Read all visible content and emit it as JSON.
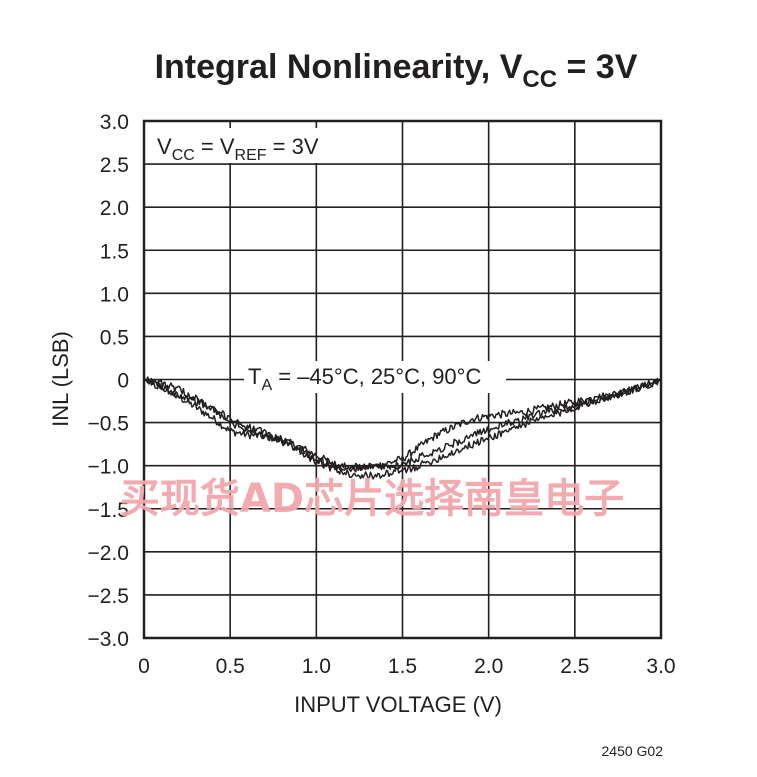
{
  "chart_data": {
    "type": "line",
    "title": {
      "main": "Integral Nonlinearity, V",
      "sub": "CC",
      "tail": " = 3V"
    },
    "xlabel": "INPUT VOLTAGE (V)",
    "ylabel": "INL (LSB)",
    "xlim": [
      0,
      3.0
    ],
    "ylim": [
      -3.0,
      3.0
    ],
    "x_ticks": [
      "0",
      "0.5",
      "1.0",
      "1.5",
      "2.0",
      "2.5",
      "3.0"
    ],
    "y_ticks": [
      "3.0",
      "2.5",
      "2.0",
      "1.5",
      "1.0",
      "0.5",
      "0",
      "−0.5",
      "−1.0",
      "−1.5",
      "−2.0",
      "−2.5",
      "−3.0"
    ],
    "grid": true,
    "annotations": {
      "condition": {
        "p1": "V",
        "p1_sub": "CC",
        "p2": " = V",
        "p2_sub": "REF",
        "p3": " = 3V"
      },
      "temperature": {
        "p1": "T",
        "p1_sub": "A",
        "p2": " = –45°C, 25°C, 90°C"
      }
    },
    "series": [
      {
        "x": [
          0,
          0.1,
          0.2,
          0.3,
          0.4,
          0.5,
          0.6,
          0.7,
          0.8,
          0.9,
          1.0,
          1.1,
          1.2,
          1.3,
          1.4,
          1.5,
          1.6,
          1.7,
          1.8,
          1.9,
          2.0,
          2.1,
          2.2,
          2.3,
          2.4,
          2.5,
          2.6,
          2.7,
          2.8,
          2.9,
          3.0
        ],
        "y": [
          0,
          -0.08,
          -0.2,
          -0.32,
          -0.45,
          -0.6,
          -0.64,
          -0.66,
          -0.7,
          -0.78,
          -0.88,
          -0.98,
          -1.04,
          -1.02,
          -0.98,
          -0.92,
          -0.78,
          -0.64,
          -0.55,
          -0.46,
          -0.42,
          -0.4,
          -0.38,
          -0.34,
          -0.3,
          -0.26,
          -0.22,
          -0.18,
          -0.14,
          -0.08,
          0
        ]
      },
      {
        "x": [
          0,
          0.1,
          0.2,
          0.3,
          0.4,
          0.5,
          0.6,
          0.7,
          0.8,
          0.9,
          1.0,
          1.1,
          1.2,
          1.3,
          1.4,
          1.5,
          1.6,
          1.7,
          1.8,
          1.9,
          2.0,
          2.1,
          2.2,
          2.3,
          2.4,
          2.5,
          2.6,
          2.7,
          2.8,
          2.9,
          3.0
        ],
        "y": [
          0,
          -0.1,
          -0.18,
          -0.25,
          -0.35,
          -0.45,
          -0.55,
          -0.62,
          -0.7,
          -0.8,
          -0.92,
          -1.0,
          -1.02,
          -1.0,
          -1.02,
          -0.98,
          -0.9,
          -0.82,
          -0.74,
          -0.66,
          -0.58,
          -0.52,
          -0.45,
          -0.4,
          -0.35,
          -0.3,
          -0.25,
          -0.2,
          -0.14,
          -0.08,
          0
        ]
      },
      {
        "x": [
          0,
          0.1,
          0.2,
          0.3,
          0.4,
          0.5,
          0.6,
          0.7,
          0.8,
          0.9,
          1.0,
          1.1,
          1.2,
          1.3,
          1.4,
          1.5,
          1.6,
          1.7,
          1.8,
          1.9,
          2.0,
          2.1,
          2.2,
          2.3,
          2.4,
          2.5,
          2.6,
          2.7,
          2.8,
          2.9,
          3.0
        ],
        "y": [
          0,
          -0.04,
          -0.12,
          -0.22,
          -0.35,
          -0.5,
          -0.58,
          -0.66,
          -0.72,
          -0.82,
          -0.95,
          -1.04,
          -1.1,
          -1.12,
          -1.1,
          -1.06,
          -1.0,
          -0.92,
          -0.84,
          -0.76,
          -0.68,
          -0.6,
          -0.52,
          -0.46,
          -0.4,
          -0.32,
          -0.26,
          -0.2,
          -0.14,
          -0.08,
          0
        ]
      }
    ]
  },
  "figure_id": "2450 G02",
  "watermark": "买现货AD芯片选择南皇电子",
  "colors": {
    "ink": "#231f20",
    "grid": "#231f20",
    "watermark": "#f2a7ac",
    "background": "#ffffff"
  }
}
